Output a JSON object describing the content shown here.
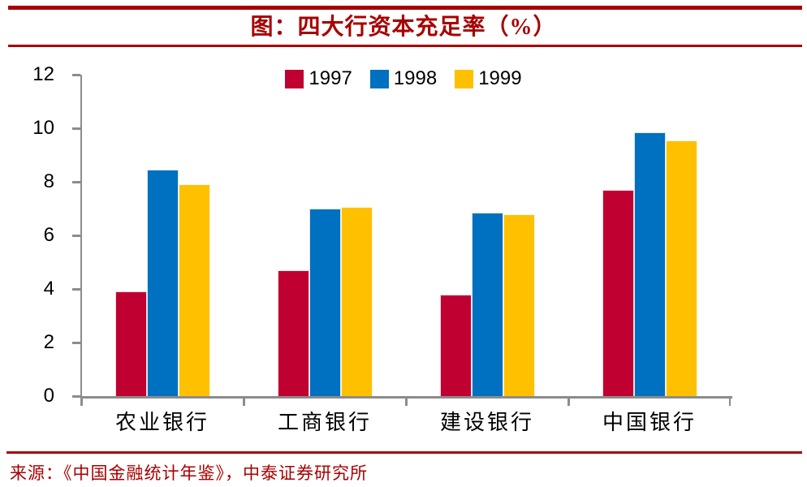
{
  "accent_color": "#A80000",
  "axis_color": "#8C8C8C",
  "title": "图：四大行资本充足率（%）",
  "source": "来源：《中国金融统计年鉴》，中泰证券研究所",
  "chart_data": {
    "type": "bar",
    "title": "图：四大行资本充足率（%）",
    "categories": [
      "农业银行",
      "工商银行",
      "建设银行",
      "中国银行"
    ],
    "series": [
      {
        "name": "1997",
        "color": "#C00030",
        "values": [
          3.9,
          4.7,
          3.8,
          7.7
        ]
      },
      {
        "name": "1998",
        "color": "#0070C0",
        "values": [
          8.45,
          7.0,
          6.85,
          9.85
        ]
      },
      {
        "name": "1999",
        "color": "#FFC000",
        "values": [
          7.9,
          7.05,
          6.8,
          9.55
        ]
      }
    ],
    "xlabel": "",
    "ylabel": "",
    "ylim": [
      0,
      12
    ],
    "yticks": [
      0,
      2,
      4,
      6,
      8,
      10,
      12
    ],
    "grid": false,
    "legend_position": "top-center"
  }
}
